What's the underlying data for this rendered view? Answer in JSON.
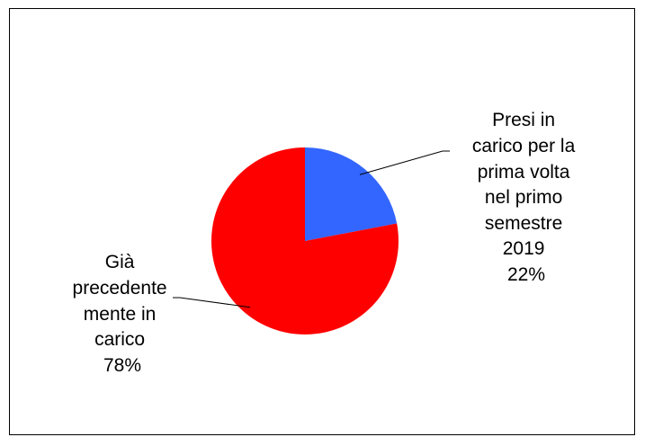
{
  "chart_data": {
    "type": "pie",
    "title": "",
    "slices": [
      {
        "label_lines": [
          "Presi in",
          "carico per la",
          "prima volta",
          "nel primo",
          "semestre",
          "2019"
        ],
        "percent_label": "22%",
        "value": 22,
        "color": "#3366ff"
      },
      {
        "label_lines": [
          "Già",
          "precedente",
          "mente in",
          "carico"
        ],
        "percent_label": "78%",
        "value": 78,
        "color": "#ff0000"
      }
    ],
    "legend": "none",
    "start_angle_deg": 0,
    "direction": "clockwise"
  }
}
